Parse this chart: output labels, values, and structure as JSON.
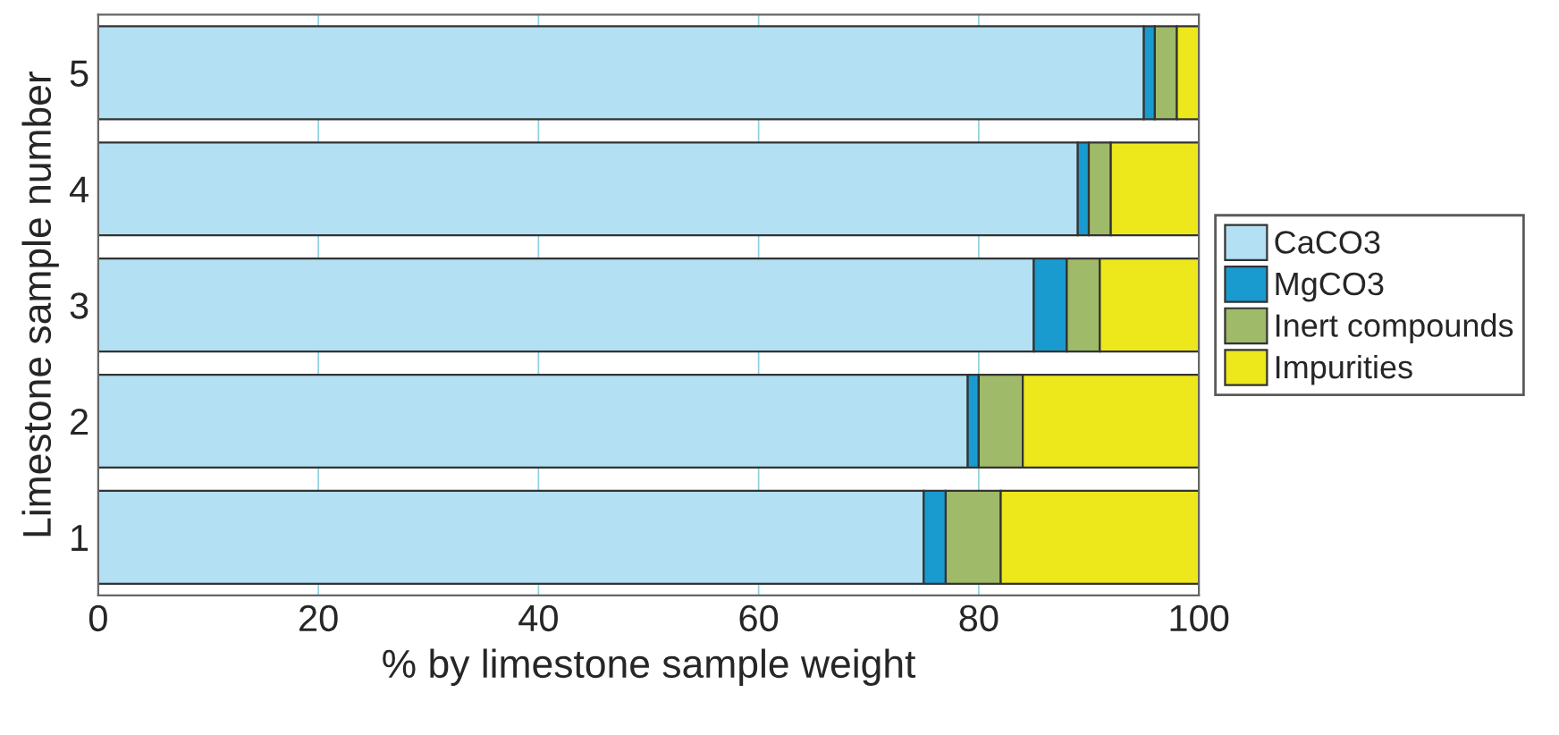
{
  "chart_data": {
    "type": "bar",
    "orientation": "horizontal",
    "stacked": true,
    "xlabel": "% by limestone sample weight",
    "ylabel": "Limestone sample number",
    "categories": [
      "5",
      "4",
      "3",
      "2",
      "1"
    ],
    "series": [
      {
        "name": "CaCO3",
        "color": "#b3e0f2",
        "values": [
          95,
          89,
          85,
          79,
          75
        ]
      },
      {
        "name": "MgCO3",
        "color": "#1a9bd0",
        "values": [
          1,
          1,
          3,
          1,
          2
        ]
      },
      {
        "name": "Inert compounds",
        "color": "#9fba68",
        "values": [
          2,
          2,
          3,
          4,
          5
        ]
      },
      {
        "name": "Impurities",
        "color": "#ece81c",
        "values": [
          2,
          8,
          9,
          16,
          18
        ]
      }
    ],
    "xlim": [
      0,
      100
    ],
    "xticks": [
      0,
      20,
      40,
      60,
      80,
      100
    ],
    "grid": true,
    "legend": "right"
  }
}
